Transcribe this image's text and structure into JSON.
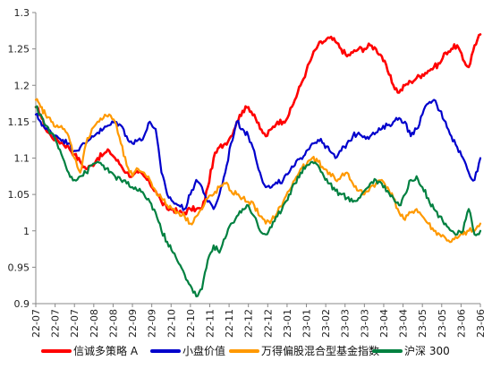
{
  "chart_data": {
    "type": "line",
    "ylim": [
      0.9,
      1.3
    ],
    "yticks": [
      0.9,
      0.95,
      1,
      1.05,
      1.1,
      1.15,
      1.2,
      1.25,
      1.3
    ],
    "ytick_labels": [
      "0.9",
      "0.95",
      "1",
      "1.05",
      "1.1",
      "1.15",
      "1.2",
      "1.25",
      "1.3"
    ],
    "x_labels": [
      "22-07",
      "22-07",
      "22-07",
      "22-08",
      "22-08",
      "22-09",
      "22-09",
      "22-10",
      "22-10",
      "22-11",
      "22-11",
      "22-12",
      "22-12",
      "23-01",
      "23-01",
      "23-02",
      "23-03",
      "23-03",
      "23-04",
      "23-04",
      "23-05",
      "23-05",
      "23-06",
      "23-06"
    ],
    "x_domain": [
      0,
      46
    ],
    "grid": false,
    "legend_position": "bottom",
    "series": [
      {
        "name": "信诚多策略 A",
        "color": "#ff0000",
        "points": [
          [
            0,
            1.17
          ],
          [
            0.5,
            1.16
          ],
          [
            1,
            1.14
          ],
          [
            1.6,
            1.13
          ],
          [
            2.2,
            1.125
          ],
          [
            2.8,
            1.12
          ],
          [
            3.4,
            1.115
          ],
          [
            4,
            1.105
          ],
          [
            4.6,
            1.095
          ],
          [
            5.2,
            1.085
          ],
          [
            5.8,
            1.09
          ],
          [
            6.4,
            1.1
          ],
          [
            7,
            1.105
          ],
          [
            7.6,
            1.11
          ],
          [
            8.2,
            1.1
          ],
          [
            8.8,
            1.09
          ],
          [
            9.4,
            1.08
          ],
          [
            10,
            1.075
          ],
          [
            10.6,
            1.08
          ],
          [
            11.2,
            1.075
          ],
          [
            11.8,
            1.065
          ],
          [
            12.4,
            1.055
          ],
          [
            13,
            1.04
          ],
          [
            13.6,
            1.03
          ],
          [
            14.2,
            1.03
          ],
          [
            14.8,
            1.025
          ],
          [
            15.4,
            1.025
          ],
          [
            16,
            1.03
          ],
          [
            16.6,
            1.03
          ],
          [
            17.2,
            1.03
          ],
          [
            17.8,
            1.06
          ],
          [
            18.4,
            1.1
          ],
          [
            19,
            1.115
          ],
          [
            19.6,
            1.12
          ],
          [
            20.2,
            1.13
          ],
          [
            20.8,
            1.15
          ],
          [
            21.4,
            1.165
          ],
          [
            22,
            1.17
          ],
          [
            22.6,
            1.16
          ],
          [
            23.2,
            1.14
          ],
          [
            23.8,
            1.13
          ],
          [
            24.4,
            1.14
          ],
          [
            25,
            1.15
          ],
          [
            25.6,
            1.15
          ],
          [
            26.2,
            1.16
          ],
          [
            26.8,
            1.18
          ],
          [
            27.4,
            1.2
          ],
          [
            28,
            1.22
          ],
          [
            28.6,
            1.24
          ],
          [
            29.2,
            1.255
          ],
          [
            29.8,
            1.26
          ],
          [
            30.4,
            1.265
          ],
          [
            31,
            1.26
          ],
          [
            31.6,
            1.25
          ],
          [
            32.2,
            1.24
          ],
          [
            32.8,
            1.245
          ],
          [
            33.4,
            1.25
          ],
          [
            34,
            1.25
          ],
          [
            34.6,
            1.255
          ],
          [
            35.2,
            1.25
          ],
          [
            35.8,
            1.24
          ],
          [
            36.4,
            1.22
          ],
          [
            37,
            1.2
          ],
          [
            37.6,
            1.19
          ],
          [
            38.2,
            1.2
          ],
          [
            38.8,
            1.205
          ],
          [
            39.4,
            1.21
          ],
          [
            40,
            1.215
          ],
          [
            40.6,
            1.22
          ],
          [
            41.2,
            1.225
          ],
          [
            41.8,
            1.23
          ],
          [
            42.4,
            1.245
          ],
          [
            43,
            1.25
          ],
          [
            43.6,
            1.255
          ],
          [
            44.2,
            1.235
          ],
          [
            44.8,
            1.225
          ],
          [
            45.4,
            1.255
          ],
          [
            46,
            1.27
          ]
        ]
      },
      {
        "name": "小盘价值",
        "color": "#0000cc",
        "points": [
          [
            0,
            1.16
          ],
          [
            0.5,
            1.15
          ],
          [
            1,
            1.14
          ],
          [
            1.6,
            1.135
          ],
          [
            2.2,
            1.13
          ],
          [
            2.8,
            1.125
          ],
          [
            3.4,
            1.12
          ],
          [
            4,
            1.11
          ],
          [
            4.6,
            1.115
          ],
          [
            5.2,
            1.12
          ],
          [
            5.8,
            1.13
          ],
          [
            6.4,
            1.135
          ],
          [
            7,
            1.14
          ],
          [
            7.6,
            1.145
          ],
          [
            8.2,
            1.15
          ],
          [
            8.8,
            1.145
          ],
          [
            9.4,
            1.13
          ],
          [
            10,
            1.12
          ],
          [
            10.6,
            1.125
          ],
          [
            11.2,
            1.13
          ],
          [
            11.8,
            1.15
          ],
          [
            12.4,
            1.14
          ],
          [
            13,
            1.08
          ],
          [
            13.6,
            1.05
          ],
          [
            14.2,
            1.04
          ],
          [
            14.8,
            1.035
          ],
          [
            15.4,
            1.03
          ],
          [
            16,
            1.05
          ],
          [
            16.6,
            1.07
          ],
          [
            17.2,
            1.06
          ],
          [
            17.8,
            1.04
          ],
          [
            18.4,
            1.03
          ],
          [
            19,
            1.05
          ],
          [
            19.6,
            1.08
          ],
          [
            20.2,
            1.12
          ],
          [
            20.8,
            1.15
          ],
          [
            21.4,
            1.14
          ],
          [
            22,
            1.13
          ],
          [
            22.6,
            1.11
          ],
          [
            23.2,
            1.08
          ],
          [
            23.8,
            1.06
          ],
          [
            24.4,
            1.06
          ],
          [
            25,
            1.065
          ],
          [
            25.6,
            1.07
          ],
          [
            26.2,
            1.08
          ],
          [
            26.8,
            1.09
          ],
          [
            27.4,
            1.1
          ],
          [
            28,
            1.11
          ],
          [
            28.6,
            1.12
          ],
          [
            29.2,
            1.125
          ],
          [
            29.8,
            1.12
          ],
          [
            30.4,
            1.11
          ],
          [
            31,
            1.1
          ],
          [
            31.6,
            1.11
          ],
          [
            32.2,
            1.12
          ],
          [
            32.8,
            1.13
          ],
          [
            33.4,
            1.135
          ],
          [
            34,
            1.13
          ],
          [
            34.6,
            1.13
          ],
          [
            35.2,
            1.135
          ],
          [
            35.8,
            1.14
          ],
          [
            36.4,
            1.145
          ],
          [
            37,
            1.15
          ],
          [
            37.6,
            1.155
          ],
          [
            38.2,
            1.15
          ],
          [
            38.8,
            1.13
          ],
          [
            39.4,
            1.14
          ],
          [
            40,
            1.16
          ],
          [
            40.6,
            1.175
          ],
          [
            41.2,
            1.18
          ],
          [
            41.8,
            1.165
          ],
          [
            42.4,
            1.15
          ],
          [
            43,
            1.13
          ],
          [
            43.6,
            1.115
          ],
          [
            44.2,
            1.1
          ],
          [
            44.8,
            1.08
          ],
          [
            45.4,
            1.07
          ],
          [
            46,
            1.1
          ]
        ]
      },
      {
        "name": "万得偏股混合型基金指数",
        "color": "#ff9900",
        "points": [
          [
            0,
            1.18
          ],
          [
            0.5,
            1.17
          ],
          [
            1,
            1.16
          ],
          [
            1.6,
            1.15
          ],
          [
            2.2,
            1.145
          ],
          [
            2.8,
            1.14
          ],
          [
            3.4,
            1.13
          ],
          [
            4,
            1.1
          ],
          [
            4.6,
            1.08
          ],
          [
            5.2,
            1.12
          ],
          [
            5.8,
            1.14
          ],
          [
            6.4,
            1.15
          ],
          [
            7,
            1.155
          ],
          [
            7.6,
            1.16
          ],
          [
            8.2,
            1.15
          ],
          [
            8.8,
            1.12
          ],
          [
            9.4,
            1.09
          ],
          [
            10,
            1.075
          ],
          [
            10.6,
            1.085
          ],
          [
            11.2,
            1.08
          ],
          [
            11.8,
            1.07
          ],
          [
            12.4,
            1.055
          ],
          [
            13,
            1.045
          ],
          [
            13.6,
            1.035
          ],
          [
            14.2,
            1.03
          ],
          [
            14.8,
            1.025
          ],
          [
            15.4,
            1.02
          ],
          [
            16,
            1.01
          ],
          [
            16.6,
            1.02
          ],
          [
            17.2,
            1.03
          ],
          [
            17.8,
            1.045
          ],
          [
            18.4,
            1.05
          ],
          [
            19,
            1.06
          ],
          [
            19.6,
            1.065
          ],
          [
            20.2,
            1.055
          ],
          [
            20.8,
            1.05
          ],
          [
            21.4,
            1.045
          ],
          [
            22,
            1.04
          ],
          [
            22.6,
            1.035
          ],
          [
            23.2,
            1.02
          ],
          [
            23.8,
            1.01
          ],
          [
            24.4,
            1.015
          ],
          [
            25,
            1.025
          ],
          [
            25.6,
            1.04
          ],
          [
            26.2,
            1.055
          ],
          [
            26.8,
            1.07
          ],
          [
            27.4,
            1.085
          ],
          [
            28,
            1.09
          ],
          [
            28.6,
            1.1
          ],
          [
            29.2,
            1.095
          ],
          [
            29.8,
            1.085
          ],
          [
            30.4,
            1.08
          ],
          [
            31,
            1.07
          ],
          [
            31.6,
            1.075
          ],
          [
            32.2,
            1.08
          ],
          [
            32.8,
            1.065
          ],
          [
            33.4,
            1.055
          ],
          [
            34,
            1.05
          ],
          [
            34.6,
            1.06
          ],
          [
            35.2,
            1.065
          ],
          [
            35.8,
            1.07
          ],
          [
            36.4,
            1.06
          ],
          [
            37,
            1.045
          ],
          [
            37.6,
            1.025
          ],
          [
            38.2,
            1.015
          ],
          [
            38.8,
            1.025
          ],
          [
            39.4,
            1.03
          ],
          [
            40,
            1.02
          ],
          [
            40.6,
            1.01
          ],
          [
            41.2,
            1.0
          ],
          [
            41.8,
            0.995
          ],
          [
            42.4,
            0.99
          ],
          [
            43,
            0.985
          ],
          [
            43.6,
            0.99
          ],
          [
            44.2,
            0.995
          ],
          [
            44.8,
            1.0
          ],
          [
            45.4,
            1.0
          ],
          [
            46,
            1.01
          ]
        ]
      },
      {
        "name": "沪深 300",
        "color": "#008040",
        "points": [
          [
            0,
            1.17
          ],
          [
            0.5,
            1.16
          ],
          [
            1,
            1.145
          ],
          [
            1.6,
            1.135
          ],
          [
            2.2,
            1.12
          ],
          [
            2.8,
            1.1
          ],
          [
            3.4,
            1.08
          ],
          [
            4,
            1.07
          ],
          [
            4.6,
            1.075
          ],
          [
            5.2,
            1.08
          ],
          [
            5.8,
            1.09
          ],
          [
            6.4,
            1.095
          ],
          [
            7,
            1.09
          ],
          [
            7.6,
            1.08
          ],
          [
            8.2,
            1.075
          ],
          [
            8.8,
            1.07
          ],
          [
            9.4,
            1.065
          ],
          [
            10,
            1.06
          ],
          [
            10.6,
            1.055
          ],
          [
            11.2,
            1.05
          ],
          [
            11.8,
            1.04
          ],
          [
            12.4,
            1.025
          ],
          [
            13,
            1.0
          ],
          [
            13.6,
            0.985
          ],
          [
            14.2,
            0.97
          ],
          [
            14.8,
            0.955
          ],
          [
            15.4,
            0.94
          ],
          [
            16,
            0.925
          ],
          [
            16.6,
            0.91
          ],
          [
            17.2,
            0.92
          ],
          [
            17.8,
            0.96
          ],
          [
            18.4,
            0.98
          ],
          [
            19,
            0.97
          ],
          [
            19.6,
            0.99
          ],
          [
            20.2,
            1.01
          ],
          [
            20.8,
            1.02
          ],
          [
            21.4,
            1.03
          ],
          [
            22,
            1.035
          ],
          [
            22.6,
            1.02
          ],
          [
            23.2,
            1.0
          ],
          [
            23.8,
            0.995
          ],
          [
            24.4,
            1.005
          ],
          [
            25,
            1.02
          ],
          [
            25.6,
            1.035
          ],
          [
            26.2,
            1.05
          ],
          [
            26.8,
            1.065
          ],
          [
            27.4,
            1.08
          ],
          [
            28,
            1.09
          ],
          [
            28.6,
            1.095
          ],
          [
            29.2,
            1.09
          ],
          [
            29.8,
            1.075
          ],
          [
            30.4,
            1.065
          ],
          [
            31,
            1.055
          ],
          [
            31.6,
            1.05
          ],
          [
            32.2,
            1.045
          ],
          [
            32.8,
            1.04
          ],
          [
            33.4,
            1.045
          ],
          [
            34,
            1.055
          ],
          [
            34.6,
            1.065
          ],
          [
            35.2,
            1.07
          ],
          [
            35.8,
            1.065
          ],
          [
            36.4,
            1.055
          ],
          [
            37,
            1.045
          ],
          [
            37.6,
            1.035
          ],
          [
            38.2,
            1.05
          ],
          [
            38.8,
            1.07
          ],
          [
            39.4,
            1.075
          ],
          [
            40,
            1.06
          ],
          [
            40.6,
            1.045
          ],
          [
            41.2,
            1.03
          ],
          [
            41.8,
            1.02
          ],
          [
            42.4,
            1.01
          ],
          [
            43,
            1.0
          ],
          [
            43.6,
            0.995
          ],
          [
            44.2,
            1.0
          ],
          [
            44.8,
            1.03
          ],
          [
            45.4,
            0.995
          ],
          [
            46,
            1.0
          ]
        ]
      }
    ]
  }
}
